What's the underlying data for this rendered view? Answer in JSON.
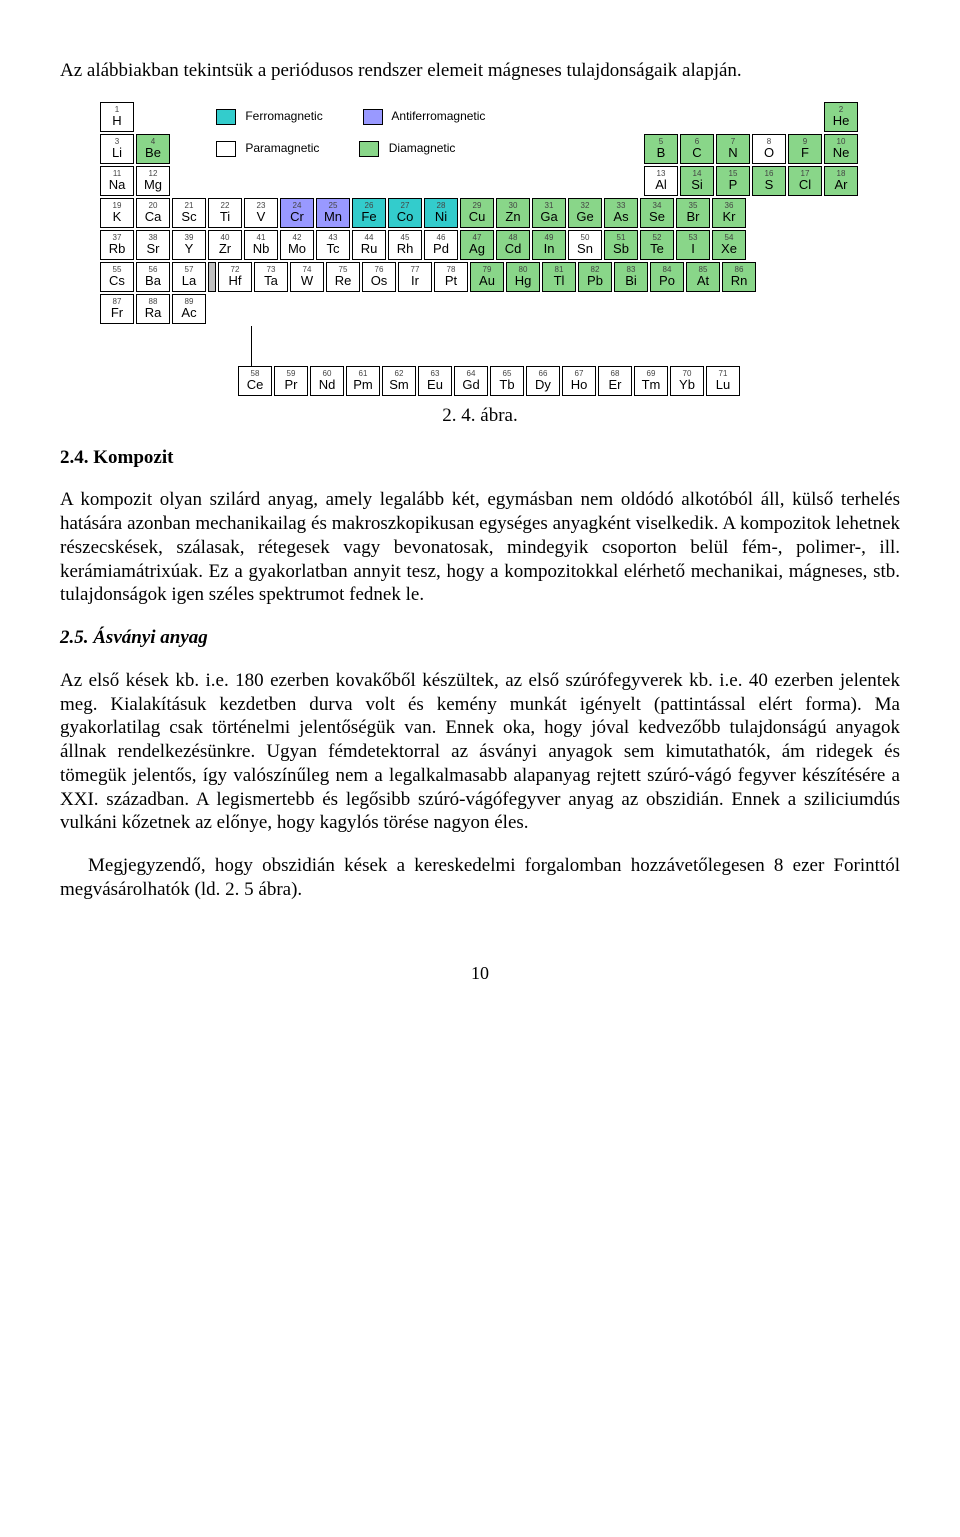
{
  "intro": "Az alábbiakban tekintsük a periódusos rendszer elemeit mágneses tulajdonságaik alapján.",
  "legend": {
    "ferromagnetic": {
      "label": "Ferromagnetic",
      "color": "#33cccc"
    },
    "antiferromagnetic": {
      "label": "Antiferromagnetic",
      "color": "#9999ff"
    },
    "paramagnetic": {
      "label": "Paramagnetic",
      "color": "#ffffff"
    },
    "diamagnetic": {
      "label": "Diamagnetic",
      "color": "#89d689"
    }
  },
  "colors": {
    "ferro": "#33cccc",
    "anti": "#9999ff",
    "para": "#ffffff",
    "dia": "#89d689",
    "gray": "#c0c0c0",
    "border": "#000000"
  },
  "pt": {
    "r1": [
      {
        "n": "1",
        "s": "H",
        "c": "para",
        "pos": "start"
      },
      {
        "n": "2",
        "s": "He",
        "c": "dia",
        "pos": "end"
      }
    ],
    "r2a": [
      {
        "n": "3",
        "s": "Li",
        "c": "para"
      },
      {
        "n": "4",
        "s": "Be",
        "c": "dia"
      }
    ],
    "r2b": [
      {
        "n": "5",
        "s": "B",
        "c": "dia"
      },
      {
        "n": "6",
        "s": "C",
        "c": "dia"
      },
      {
        "n": "7",
        "s": "N",
        "c": "dia"
      },
      {
        "n": "8",
        "s": "O",
        "c": "para"
      },
      {
        "n": "9",
        "s": "F",
        "c": "dia"
      },
      {
        "n": "10",
        "s": "Ne",
        "c": "dia"
      }
    ],
    "r3a": [
      {
        "n": "11",
        "s": "Na",
        "c": "para"
      },
      {
        "n": "12",
        "s": "Mg",
        "c": "para"
      }
    ],
    "r3b": [
      {
        "n": "13",
        "s": "Al",
        "c": "para"
      },
      {
        "n": "14",
        "s": "Si",
        "c": "dia"
      },
      {
        "n": "15",
        "s": "P",
        "c": "dia"
      },
      {
        "n": "16",
        "s": "S",
        "c": "dia"
      },
      {
        "n": "17",
        "s": "Cl",
        "c": "dia"
      },
      {
        "n": "18",
        "s": "Ar",
        "c": "dia"
      }
    ],
    "r4": [
      {
        "n": "19",
        "s": "K",
        "c": "para"
      },
      {
        "n": "20",
        "s": "Ca",
        "c": "para"
      },
      {
        "n": "21",
        "s": "Sc",
        "c": "para"
      },
      {
        "n": "22",
        "s": "Ti",
        "c": "para"
      },
      {
        "n": "23",
        "s": "V",
        "c": "para"
      },
      {
        "n": "24",
        "s": "Cr",
        "c": "anti"
      },
      {
        "n": "25",
        "s": "Mn",
        "c": "anti"
      },
      {
        "n": "26",
        "s": "Fe",
        "c": "ferro"
      },
      {
        "n": "27",
        "s": "Co",
        "c": "ferro"
      },
      {
        "n": "28",
        "s": "Ni",
        "c": "ferro"
      },
      {
        "n": "29",
        "s": "Cu",
        "c": "dia"
      },
      {
        "n": "30",
        "s": "Zn",
        "c": "dia"
      },
      {
        "n": "31",
        "s": "Ga",
        "c": "dia"
      },
      {
        "n": "32",
        "s": "Ge",
        "c": "dia"
      },
      {
        "n": "33",
        "s": "As",
        "c": "dia"
      },
      {
        "n": "34",
        "s": "Se",
        "c": "dia"
      },
      {
        "n": "35",
        "s": "Br",
        "c": "dia"
      },
      {
        "n": "36",
        "s": "Kr",
        "c": "dia"
      }
    ],
    "r5": [
      {
        "n": "37",
        "s": "Rb",
        "c": "para"
      },
      {
        "n": "38",
        "s": "Sr",
        "c": "para"
      },
      {
        "n": "39",
        "s": "Y",
        "c": "para"
      },
      {
        "n": "40",
        "s": "Zr",
        "c": "para"
      },
      {
        "n": "41",
        "s": "Nb",
        "c": "para"
      },
      {
        "n": "42",
        "s": "Mo",
        "c": "para"
      },
      {
        "n": "43",
        "s": "Tc",
        "c": "para"
      },
      {
        "n": "44",
        "s": "Ru",
        "c": "para"
      },
      {
        "n": "45",
        "s": "Rh",
        "c": "para"
      },
      {
        "n": "46",
        "s": "Pd",
        "c": "para"
      },
      {
        "n": "47",
        "s": "Ag",
        "c": "dia"
      },
      {
        "n": "48",
        "s": "Cd",
        "c": "dia"
      },
      {
        "n": "49",
        "s": "In",
        "c": "dia"
      },
      {
        "n": "50",
        "s": "Sn",
        "c": "para"
      },
      {
        "n": "51",
        "s": "Sb",
        "c": "dia"
      },
      {
        "n": "52",
        "s": "Te",
        "c": "dia"
      },
      {
        "n": "53",
        "s": "I",
        "c": "dia"
      },
      {
        "n": "54",
        "s": "Xe",
        "c": "dia"
      }
    ],
    "r6": [
      {
        "n": "55",
        "s": "Cs",
        "c": "para"
      },
      {
        "n": "56",
        "s": "Ba",
        "c": "para"
      },
      {
        "n": "57",
        "s": "La",
        "c": "para"
      },
      {
        "n": "",
        "s": "",
        "c": "gray"
      },
      {
        "n": "72",
        "s": "Hf",
        "c": "para"
      },
      {
        "n": "73",
        "s": "Ta",
        "c": "para"
      },
      {
        "n": "74",
        "s": "W",
        "c": "para"
      },
      {
        "n": "75",
        "s": "Re",
        "c": "para"
      },
      {
        "n": "76",
        "s": "Os",
        "c": "para"
      },
      {
        "n": "77",
        "s": "Ir",
        "c": "para"
      },
      {
        "n": "78",
        "s": "Pt",
        "c": "para"
      },
      {
        "n": "79",
        "s": "Au",
        "c": "dia"
      },
      {
        "n": "80",
        "s": "Hg",
        "c": "dia"
      },
      {
        "n": "81",
        "s": "Tl",
        "c": "dia"
      },
      {
        "n": "82",
        "s": "Pb",
        "c": "dia"
      },
      {
        "n": "83",
        "s": "Bi",
        "c": "dia"
      },
      {
        "n": "84",
        "s": "Po",
        "c": "dia"
      },
      {
        "n": "85",
        "s": "At",
        "c": "dia"
      },
      {
        "n": "86",
        "s": "Rn",
        "c": "dia"
      }
    ],
    "r7": [
      {
        "n": "87",
        "s": "Fr",
        "c": "para"
      },
      {
        "n": "88",
        "s": "Ra",
        "c": "para"
      },
      {
        "n": "89",
        "s": "Ac",
        "c": "para"
      }
    ],
    "la": [
      {
        "n": "58",
        "s": "Ce",
        "c": "para"
      },
      {
        "n": "59",
        "s": "Pr",
        "c": "para"
      },
      {
        "n": "60",
        "s": "Nd",
        "c": "para"
      },
      {
        "n": "61",
        "s": "Pm",
        "c": "para"
      },
      {
        "n": "62",
        "s": "Sm",
        "c": "para"
      },
      {
        "n": "63",
        "s": "Eu",
        "c": "para"
      },
      {
        "n": "64",
        "s": "Gd",
        "c": "para"
      },
      {
        "n": "65",
        "s": "Tb",
        "c": "para"
      },
      {
        "n": "66",
        "s": "Dy",
        "c": "para"
      },
      {
        "n": "67",
        "s": "Ho",
        "c": "para"
      },
      {
        "n": "68",
        "s": "Er",
        "c": "para"
      },
      {
        "n": "69",
        "s": "Tm",
        "c": "para"
      },
      {
        "n": "70",
        "s": "Yb",
        "c": "para"
      },
      {
        "n": "71",
        "s": "Lu",
        "c": "para"
      }
    ]
  },
  "caption": "2. 4. ábra.",
  "sec24_title": "2.4. Kompozit",
  "sec24_text": "A kompozit olyan szilárd anyag, amely legalább két, egymásban nem oldódó alkotóból áll, külső terhelés hatására azonban mechanikailag és makroszkopikusan egységes anyagként viselkedik. A kompozitok lehetnek részecskések, szálasak, rétegesek vagy bevonatosak, mindegyik csoporton belül fém-, polimer-, ill. kerámiamátrixúak. Ez a gyakorlatban annyit tesz, hogy a kompozitokkal elérhető mechanikai, mágneses, stb. tulajdonságok igen széles spektrumot fednek le.",
  "sec25_title": "2.5. Ásványi anyag",
  "sec25_p1": "Az első kések kb. i.e. 180 ezerben kovakőből készültek, az első szúrófegyverek kb. i.e. 40 ezerben jelentek meg. Kialakításuk kezdetben durva volt és kemény munkát igényelt (pattintással elért forma). Ma gyakorlatilag csak történelmi jelentőségük van. Ennek oka, hogy jóval kedvezőbb tulajdonságú anyagok állnak rendelkezésünkre. Ugyan fémdetektorral az ásványi anyagok sem kimutathatók, ám ridegek és tömegük jelentős, így valószínűleg nem a legalkalmasabb alapanyag rejtett szúró-vágó fegyver készítésére a XXI. században. A legismertebb és legősibb szúró-vágófegyver anyag az obszidián. Ennek a sziliciumdús vulkáni kőzetnek az előnye, hogy kagylós törése nagyon éles.",
  "sec25_p2": "Megjegyzendő, hogy obszidián kések a kereskedelmi forgalomban hozzávetőlegesen 8 ezer Forinttól megvásárolhatók (ld. 2. 5 ábra).",
  "page_number": "10"
}
